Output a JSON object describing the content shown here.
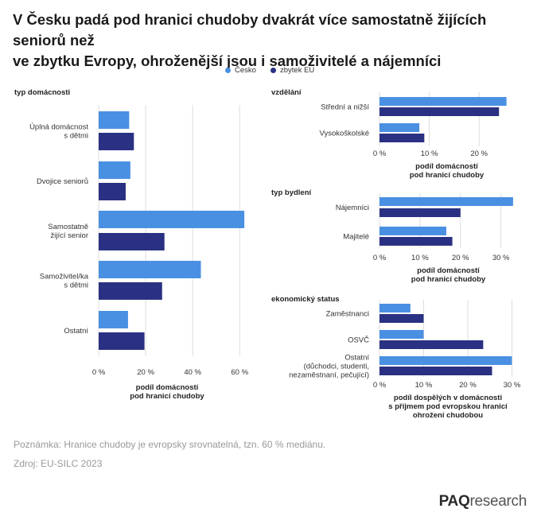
{
  "title_lines": [
    "V Česku padá pod hranici chudoby dvakrát více samostatně žijících seniorů než",
    "ve zbytku Evropy, ohroženější jsou i samoživitelé a nájemníci"
  ],
  "colors": {
    "cz": "#4a90e2",
    "eu": "#2a3182",
    "grid": "#dddddd",
    "text": "#333333"
  },
  "legend": [
    {
      "label": "Česko",
      "color": "#4a90e2"
    },
    {
      "label": "zbytek EU",
      "color": "#2a3182"
    }
  ],
  "chart_data": [
    {
      "type": "bar",
      "orientation": "horizontal",
      "title": "typ domácnosti",
      "categories": [
        [
          "Úplná domácnost",
          "s dětmi"
        ],
        [
          "Dvojice seniorů"
        ],
        [
          "Samostatně",
          "žijící senior"
        ],
        [
          "Samoživitel/ka",
          "s dětmi"
        ],
        [
          "Ostatní"
        ]
      ],
      "series": [
        {
          "name": "Česko",
          "values": [
            13,
            13.5,
            62,
            43.5,
            12.5
          ]
        },
        {
          "name": "zbytek EU",
          "values": [
            15,
            11.5,
            28,
            27,
            19.5
          ]
        }
      ],
      "xlim": [
        0,
        65
      ],
      "ticks": [
        0,
        20,
        40,
        60
      ],
      "tick_labels": [
        "0 %",
        "20 %",
        "40 %",
        "60 %"
      ],
      "xlabel": [
        "podíl domácností",
        "pod hranicí chudoby"
      ]
    },
    {
      "type": "bar",
      "orientation": "horizontal",
      "title": "vzdělání",
      "categories": [
        [
          "Střední a nižší"
        ],
        [
          "Vysokoškolské"
        ]
      ],
      "series": [
        {
          "name": "Česko",
          "values": [
            25.5,
            8
          ]
        },
        {
          "name": "zbytek EU",
          "values": [
            24,
            9
          ]
        }
      ],
      "xlim": [
        0,
        27
      ],
      "ticks": [
        0,
        10,
        20
      ],
      "tick_labels": [
        "0 %",
        "10 %",
        "20 %"
      ],
      "xlabel": [
        "podíl domácností",
        "pod hranicí chudoby"
      ]
    },
    {
      "type": "bar",
      "orientation": "horizontal",
      "title": "typ bydlení",
      "categories": [
        [
          "Nájemníci"
        ],
        [
          "Majitelé"
        ]
      ],
      "series": [
        {
          "name": "Česko",
          "values": [
            33,
            16.5
          ]
        },
        {
          "name": "zbytek EU",
          "values": [
            20,
            18
          ]
        }
      ],
      "xlim": [
        0,
        34
      ],
      "ticks": [
        0,
        10,
        20,
        30
      ],
      "tick_labels": [
        "0 %",
        "10 %",
        "20 %",
        "30 %"
      ],
      "xlabel": [
        "podíl domácností",
        "pod hranicí chudoby"
      ]
    },
    {
      "type": "bar",
      "orientation": "horizontal",
      "title": "ekonomický status",
      "categories": [
        [
          "Zaměstnanci"
        ],
        [
          "OSVČ"
        ],
        [
          "Ostatní",
          "(důchodci, studenti,",
          "nezaměstnaní, pečující)"
        ]
      ],
      "series": [
        {
          "name": "Česko",
          "values": [
            7,
            10,
            30
          ]
        },
        {
          "name": "zbytek EU",
          "values": [
            10,
            23.5,
            25.5
          ]
        }
      ],
      "xlim": [
        0,
        31
      ],
      "ticks": [
        0,
        10,
        20,
        30
      ],
      "tick_labels": [
        "0 %",
        "10 %",
        "20 %",
        "30 %"
      ],
      "xlabel": [
        "podíl dospělých v domácnosti",
        "s příjmem pod evropskou hranicí",
        "ohrožení chudobou"
      ]
    }
  ],
  "notes": {
    "poznamka": "Poznámka: Hranice chudoby je evropsky srovnatelná, tzn. 60 % mediánu.",
    "zdroj": "Zdroj: EU-SILC 2023"
  },
  "logo": {
    "bold": "PAQ",
    "rest": "research"
  }
}
